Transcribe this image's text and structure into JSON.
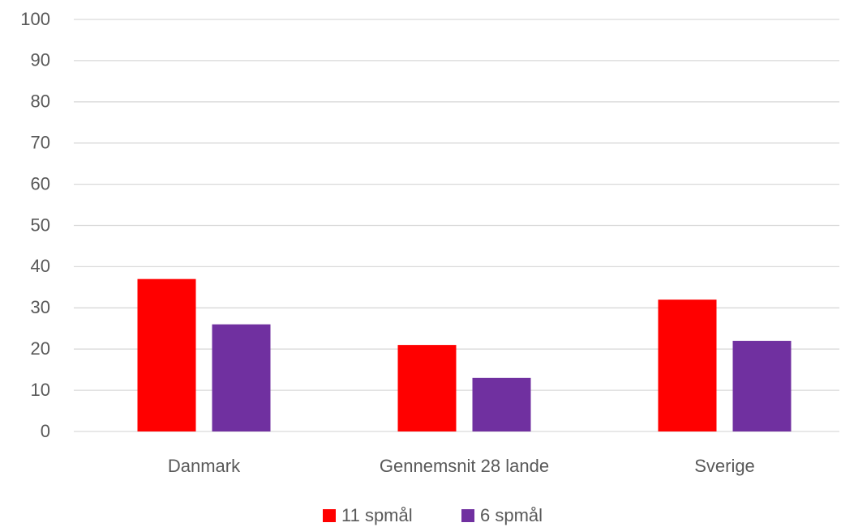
{
  "chart_data": {
    "type": "bar",
    "categories": [
      "Danmark",
      "Gennemsnit 28 lande",
      "Sverige"
    ],
    "series": [
      {
        "name": "11 spmål",
        "color": "#ff0000",
        "values": [
          37,
          21,
          32
        ]
      },
      {
        "name": "6 spmål",
        "color": "#7030a0",
        "values": [
          26,
          13,
          22
        ]
      }
    ],
    "ylim": [
      0,
      100
    ],
    "yticks": [
      0,
      10,
      20,
      30,
      40,
      50,
      60,
      70,
      80,
      90,
      100
    ],
    "grid": true,
    "legend": "bottom"
  }
}
